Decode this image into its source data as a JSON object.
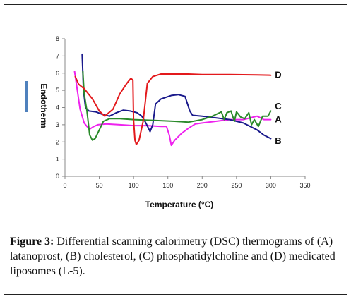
{
  "chart_data": {
    "type": "line",
    "xlabel": "Temperature (°C)",
    "ylabel": "Endotherm",
    "xlim": [
      0,
      350
    ],
    "ylim": [
      0,
      8
    ],
    "x_ticks": [
      0,
      50,
      100,
      150,
      200,
      250,
      300,
      350
    ],
    "y_ticks": [
      0,
      1,
      2,
      3,
      4,
      5,
      6,
      7,
      8
    ],
    "grid": false,
    "series": [
      {
        "name": "A",
        "color": "#ee22ee",
        "points": [
          [
            14,
            6.1
          ],
          [
            18,
            5
          ],
          [
            22,
            3.9
          ],
          [
            28,
            3.1
          ],
          [
            32,
            2.9
          ],
          [
            36,
            2.75
          ],
          [
            42,
            2.9
          ],
          [
            48,
            3
          ],
          [
            60,
            3.05
          ],
          [
            80,
            3
          ],
          [
            100,
            2.95
          ],
          [
            120,
            2.95
          ],
          [
            140,
            2.9
          ],
          [
            148,
            2.9
          ],
          [
            152,
            2.4
          ],
          [
            155,
            1.8
          ],
          [
            160,
            2.1
          ],
          [
            170,
            2.5
          ],
          [
            180,
            2.8
          ],
          [
            190,
            3.05
          ],
          [
            200,
            3.1
          ],
          [
            220,
            3.2
          ],
          [
            240,
            3.3
          ],
          [
            260,
            3.3
          ],
          [
            270,
            3.4
          ],
          [
            280,
            3.5
          ],
          [
            290,
            3.3
          ],
          [
            300,
            3.3
          ]
        ]
      },
      {
        "name": "B",
        "color": "#1a1a8c",
        "points": [
          [
            25,
            7.1
          ],
          [
            27,
            5
          ],
          [
            30,
            4
          ],
          [
            35,
            3.8
          ],
          [
            45,
            3.75
          ],
          [
            55,
            3.6
          ],
          [
            65,
            3.5
          ],
          [
            75,
            3.7
          ],
          [
            85,
            3.85
          ],
          [
            95,
            3.8
          ],
          [
            105,
            3.7
          ],
          [
            112,
            3.5
          ],
          [
            118,
            3.1
          ],
          [
            124,
            2.6
          ],
          [
            128,
            3
          ],
          [
            132,
            4.2
          ],
          [
            140,
            4.5
          ],
          [
            155,
            4.7
          ],
          [
            165,
            4.75
          ],
          [
            175,
            4.65
          ],
          [
            182,
            3.8
          ],
          [
            186,
            3.55
          ],
          [
            200,
            3.5
          ],
          [
            220,
            3.4
          ],
          [
            240,
            3.3
          ],
          [
            260,
            3.1
          ],
          [
            280,
            2.7
          ],
          [
            290,
            2.4
          ],
          [
            300,
            2.2
          ]
        ]
      },
      {
        "name": "C",
        "color": "#2a8a2a",
        "points": [
          [
            26,
            6.1
          ],
          [
            28,
            4.8
          ],
          [
            32,
            3.8
          ],
          [
            36,
            2.4
          ],
          [
            40,
            2.1
          ],
          [
            44,
            2.2
          ],
          [
            50,
            2.7
          ],
          [
            56,
            3.2
          ],
          [
            65,
            3.35
          ],
          [
            80,
            3.35
          ],
          [
            100,
            3.3
          ],
          [
            130,
            3.25
          ],
          [
            160,
            3.2
          ],
          [
            180,
            3.15
          ],
          [
            200,
            3.3
          ],
          [
            215,
            3.5
          ],
          [
            228,
            3.75
          ],
          [
            232,
            3.3
          ],
          [
            236,
            3.7
          ],
          [
            242,
            3.8
          ],
          [
            247,
            3.2
          ],
          [
            250,
            3.75
          ],
          [
            256,
            3.45
          ],
          [
            262,
            3.35
          ],
          [
            268,
            3.7
          ],
          [
            272,
            3
          ],
          [
            276,
            3.3
          ],
          [
            282,
            2.9
          ],
          [
            288,
            3.5
          ],
          [
            296,
            3.5
          ],
          [
            300,
            3.8
          ]
        ]
      },
      {
        "name": "D",
        "color": "#e3191c",
        "points": [
          [
            15,
            5.8
          ],
          [
            20,
            5.35
          ],
          [
            28,
            5.1
          ],
          [
            40,
            4.5
          ],
          [
            50,
            3.8
          ],
          [
            58,
            3.5
          ],
          [
            70,
            3.9
          ],
          [
            80,
            4.8
          ],
          [
            90,
            5.4
          ],
          [
            96,
            5.7
          ],
          [
            99,
            5.6
          ],
          [
            100,
            3.3
          ],
          [
            102,
            2.1
          ],
          [
            104,
            1.85
          ],
          [
            108,
            2.1
          ],
          [
            114,
            3.2
          ],
          [
            120,
            5.4
          ],
          [
            128,
            5.8
          ],
          [
            140,
            5.95
          ],
          [
            160,
            5.95
          ],
          [
            180,
            5.95
          ],
          [
            200,
            5.92
          ],
          [
            240,
            5.92
          ],
          [
            280,
            5.9
          ],
          [
            300,
            5.88
          ]
        ]
      }
    ],
    "curve_labels": [
      {
        "text": "D",
        "x": 306,
        "y": 5.92
      },
      {
        "text": "C",
        "x": 306,
        "y": 4.1
      },
      {
        "text": "A",
        "x": 306,
        "y": 3.35
      },
      {
        "text": "B",
        "x": 306,
        "y": 2.1
      }
    ],
    "legend_bar_color": "#4f81bd"
  },
  "caption": {
    "label": "Figure 3:",
    "text": " Differential scanning calorimetry (DSC) thermograms of (A) latanoprost, (B) cholesterol, (C) phosphatidylcholine and (D) medicated liposomes (L-5)."
  }
}
